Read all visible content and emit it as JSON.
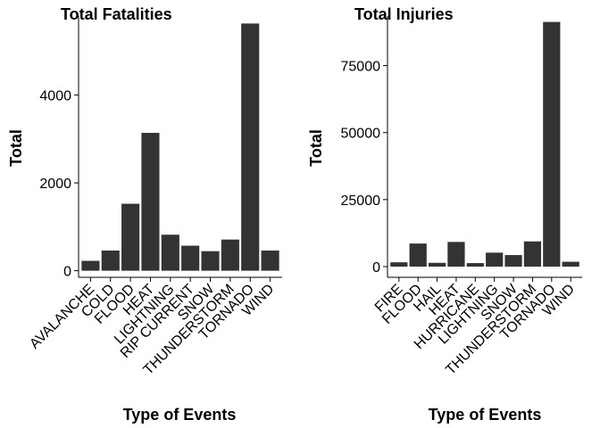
{
  "chart_data": [
    {
      "type": "bar",
      "title": "Total Fatalities",
      "xlabel": "Type of Events",
      "ylabel": "Total",
      "ylim": [
        -150,
        5800
      ],
      "yticks": [
        0,
        2000,
        4000
      ],
      "categories": [
        "AVALANCHE",
        "COLD",
        "FLOOD",
        "HEAT",
        "LIGHTNING",
        "RIP CURRENT",
        "SNOW",
        "THUNDERSTORM",
        "TORNADO",
        "WIND"
      ],
      "values": [
        225,
        460,
        1525,
        3140,
        820,
        570,
        445,
        710,
        5630,
        460
      ],
      "bar_color": "#333333",
      "grid": false
    },
    {
      "type": "bar",
      "title": "Total Injuries",
      "xlabel": "Type of Events",
      "ylabel": "Total",
      "ylim": [
        -4000,
        93500
      ],
      "yticks": [
        0,
        25000,
        50000,
        75000
      ],
      "categories": [
        "FIRE",
        "FLOOD",
        "HAIL",
        "HEAT",
        "HURRICANE",
        "LIGHTNING",
        "SNOW",
        "THUNDERSTORM",
        "TORNADO",
        "WIND"
      ],
      "values": [
        1600,
        8600,
        1400,
        9200,
        1300,
        5200,
        4300,
        9400,
        91300,
        1800
      ],
      "bar_color": "#333333",
      "grid": false
    }
  ]
}
